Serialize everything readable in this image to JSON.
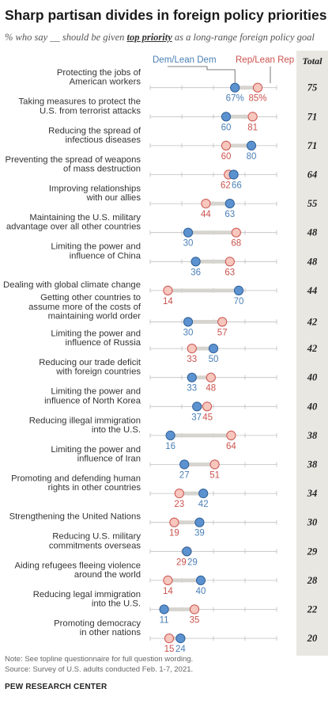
{
  "title": "Sharp partisan divides in foreign policy priorities",
  "subtitle_before": "% who say __ should be given ",
  "subtitle_highlight": "top priority",
  "subtitle_after": " as a long-range foreign policy goal",
  "legend": {
    "dem": "Dem/Lean Dem",
    "rep": "Rep/Lean Rep"
  },
  "total_header": "Total",
  "colors": {
    "dem_fill": "#5b92cf",
    "dem_stroke": "#2f5f97",
    "dem_text": "#4a7fb5",
    "rep_fill": "#f7c6bd",
    "rep_stroke": "#c9534e",
    "rep_text": "#c9534e",
    "bar": "#d6d4cf",
    "axis": "#bfbfbf",
    "total_col": "#e9e7e2"
  },
  "chart_data": {
    "type": "dot-plot",
    "value_unit": "%",
    "series": [
      {
        "name": "Dem/Lean Dem",
        "key": "dem"
      },
      {
        "name": "Rep/Lean Rep",
        "key": "rep"
      }
    ],
    "items": [
      {
        "label": [
          "Protecting the jobs of",
          "American workers"
        ],
        "dem": 67,
        "rep": 85,
        "total": 75,
        "show_pct": true
      },
      {
        "label": [
          "Taking measures to protect the",
          "U.S. from terrorist attacks"
        ],
        "dem": 60,
        "rep": 81,
        "total": 71
      },
      {
        "label": [
          "Reducing the spread of",
          "infectious diseases"
        ],
        "dem": 80,
        "rep": 60,
        "total": 71
      },
      {
        "label": [
          "Preventing the spread of weapons",
          "of mass destruction"
        ],
        "dem": 66,
        "rep": 62,
        "total": 64
      },
      {
        "label": [
          "Improving relationships",
          "with our allies"
        ],
        "dem": 63,
        "rep": 44,
        "total": 55
      },
      {
        "label": [
          "Maintaining the U.S. military",
          "advantage over all other countries"
        ],
        "dem": 30,
        "rep": 68,
        "total": 48
      },
      {
        "label": [
          "Limiting the power and",
          "influence of China"
        ],
        "dem": 36,
        "rep": 63,
        "total": 48
      },
      {
        "label": [
          "Dealing with global climate change"
        ],
        "dem": 70,
        "rep": 14,
        "total": 44
      },
      {
        "label": [
          "Getting other countries to",
          "assume more of the costs of",
          "maintaining world order"
        ],
        "dem": 30,
        "rep": 57,
        "total": 42
      },
      {
        "label": [
          "Limiting the power and",
          "influence of Russia"
        ],
        "dem": 50,
        "rep": 33,
        "total": 42
      },
      {
        "label": [
          "Reducing our trade deficit",
          "with foreign countries"
        ],
        "dem": 33,
        "rep": 48,
        "total": 40
      },
      {
        "label": [
          "Limiting the power and",
          "influence of North Korea"
        ],
        "dem": 37,
        "rep": 45,
        "total": 40
      },
      {
        "label": [
          "Reducing illegal immigration",
          "into the U.S."
        ],
        "dem": 16,
        "rep": 64,
        "total": 38
      },
      {
        "label": [
          "Limiting the power and",
          "influence of Iran"
        ],
        "dem": 27,
        "rep": 51,
        "total": 38
      },
      {
        "label": [
          "Promoting and defending human",
          "rights in other countries"
        ],
        "dem": 42,
        "rep": 23,
        "total": 34
      },
      {
        "label": [
          "Strengthening the United Nations"
        ],
        "dem": 39,
        "rep": 19,
        "total": 30
      },
      {
        "label": [
          "Reducing U.S. military",
          "commitments overseas"
        ],
        "dem": 29,
        "rep": 29,
        "total": 29
      },
      {
        "label": [
          "Aiding refugees fleeing violence",
          "around the world"
        ],
        "dem": 40,
        "rep": 14,
        "total": 28
      },
      {
        "label": [
          "Reducing legal immigration",
          "into the U.S."
        ],
        "dem": 11,
        "rep": 35,
        "total": 22
      },
      {
        "label": [
          "Promoting democracy",
          "in other nations"
        ],
        "dem": 24,
        "rep": 15,
        "total": 20
      }
    ],
    "xlim": [
      0,
      100
    ]
  },
  "notes": [
    "Note: See topline questionnaire for full question wording.",
    "Source: Survey of U.S. adults conducted Feb. 1-7, 2021."
  ],
  "source_org": "PEW RESEARCH CENTER"
}
